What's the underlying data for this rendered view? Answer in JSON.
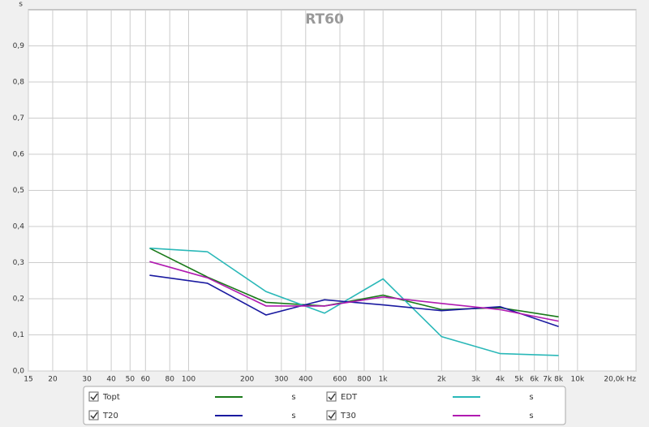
{
  "chart_data": {
    "type": "line",
    "title": "RT60",
    "y_label": "s",
    "x": [
      63,
      125,
      250,
      500,
      1000,
      2000,
      4000,
      8000
    ],
    "xlim": [
      15,
      20000
    ],
    "xscale": "log",
    "xticks": [
      15,
      20,
      30,
      40,
      50,
      60,
      80,
      100,
      200,
      300,
      400,
      600,
      800,
      {
        "value": 1000,
        "label": "1k"
      },
      {
        "value": 2000,
        "label": "2k"
      },
      {
        "value": 3000,
        "label": "3k"
      },
      {
        "value": 4000,
        "label": "4k"
      },
      {
        "value": 5000,
        "label": "5k"
      },
      {
        "value": 6000,
        "label": "6k"
      },
      {
        "value": 7000,
        "label": "7k"
      },
      {
        "value": 8000,
        "label": "8k"
      },
      {
        "value": 10000,
        "label": "10k"
      },
      {
        "value": 20000,
        "label": "20,0k Hz"
      }
    ],
    "ylim": [
      0,
      1
    ],
    "yticks": [
      {
        "value": 0,
        "label": "0,0"
      },
      {
        "value": 0.1,
        "label": "0,1"
      },
      {
        "value": 0.2,
        "label": "0,2"
      },
      {
        "value": 0.3,
        "label": "0,3"
      },
      {
        "value": 0.4,
        "label": "0,4"
      },
      {
        "value": 0.5,
        "label": "0,5"
      },
      {
        "value": 0.6,
        "label": "0,6"
      },
      {
        "value": 0.7,
        "label": "0,7"
      },
      {
        "value": 0.8,
        "label": "0,8"
      },
      {
        "value": 0.9,
        "label": "0,9"
      }
    ],
    "grid": true,
    "series": [
      {
        "name": "Topt",
        "color": "#1a7a1a",
        "unit": "s",
        "values": [
          0.34,
          0.26,
          0.19,
          0.18,
          0.21,
          0.17,
          0.175,
          0.15
        ]
      },
      {
        "name": "EDT",
        "color": "#2ab8b8",
        "unit": "s",
        "values": [
          0.34,
          0.33,
          0.22,
          0.16,
          0.255,
          0.095,
          0.048,
          0.043
        ]
      },
      {
        "name": "T20",
        "color": "#1a1aa0",
        "unit": "s",
        "values": [
          0.265,
          0.243,
          0.155,
          0.197,
          0.183,
          0.167,
          0.178,
          0.123
        ]
      },
      {
        "name": "T30",
        "color": "#b01ab0",
        "unit": "s",
        "values": [
          0.303,
          0.258,
          0.18,
          0.18,
          0.205,
          0.187,
          0.17,
          0.138
        ]
      }
    ]
  }
}
